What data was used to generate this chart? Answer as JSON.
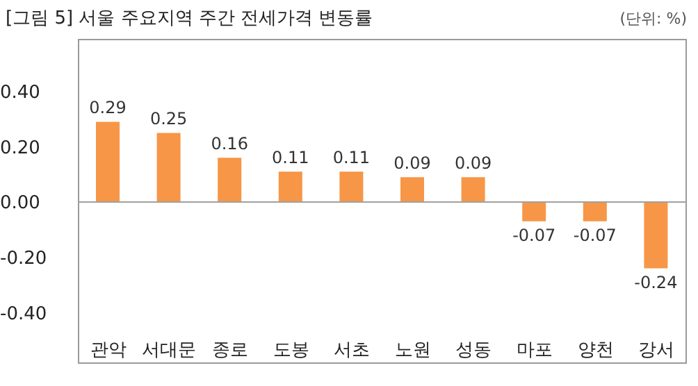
{
  "chart_data": {
    "type": "bar",
    "title": "[그림 5] 서울 주요지역 주간 전세가격 변동률",
    "annotations": [
      "(단위: %)"
    ],
    "categories": [
      "관악",
      "서대문",
      "종로",
      "도봉",
      "서초",
      "노원",
      "성동",
      "마포",
      "양천",
      "강서"
    ],
    "values": [
      0.29,
      0.25,
      0.16,
      0.11,
      0.11,
      0.09,
      0.09,
      -0.07,
      -0.07,
      -0.24
    ],
    "color": "#f79646",
    "data_labels": true,
    "grid": false,
    "legend": false,
    "ylim": [
      -0.58,
      0.59
    ],
    "yticks": [
      {
        "value": -0.4,
        "label": "-0.40"
      },
      {
        "value": -0.2,
        "label": "-0.20"
      },
      {
        "value": 0,
        "label": "0.00"
      },
      {
        "value": 0.2,
        "label": "0.20"
      },
      {
        "value": 0.4,
        "label": "0.40"
      }
    ],
    "ref_lines": [
      {
        "axis": "y",
        "value": 0,
        "color": "#a0a0a0"
      }
    ]
  }
}
